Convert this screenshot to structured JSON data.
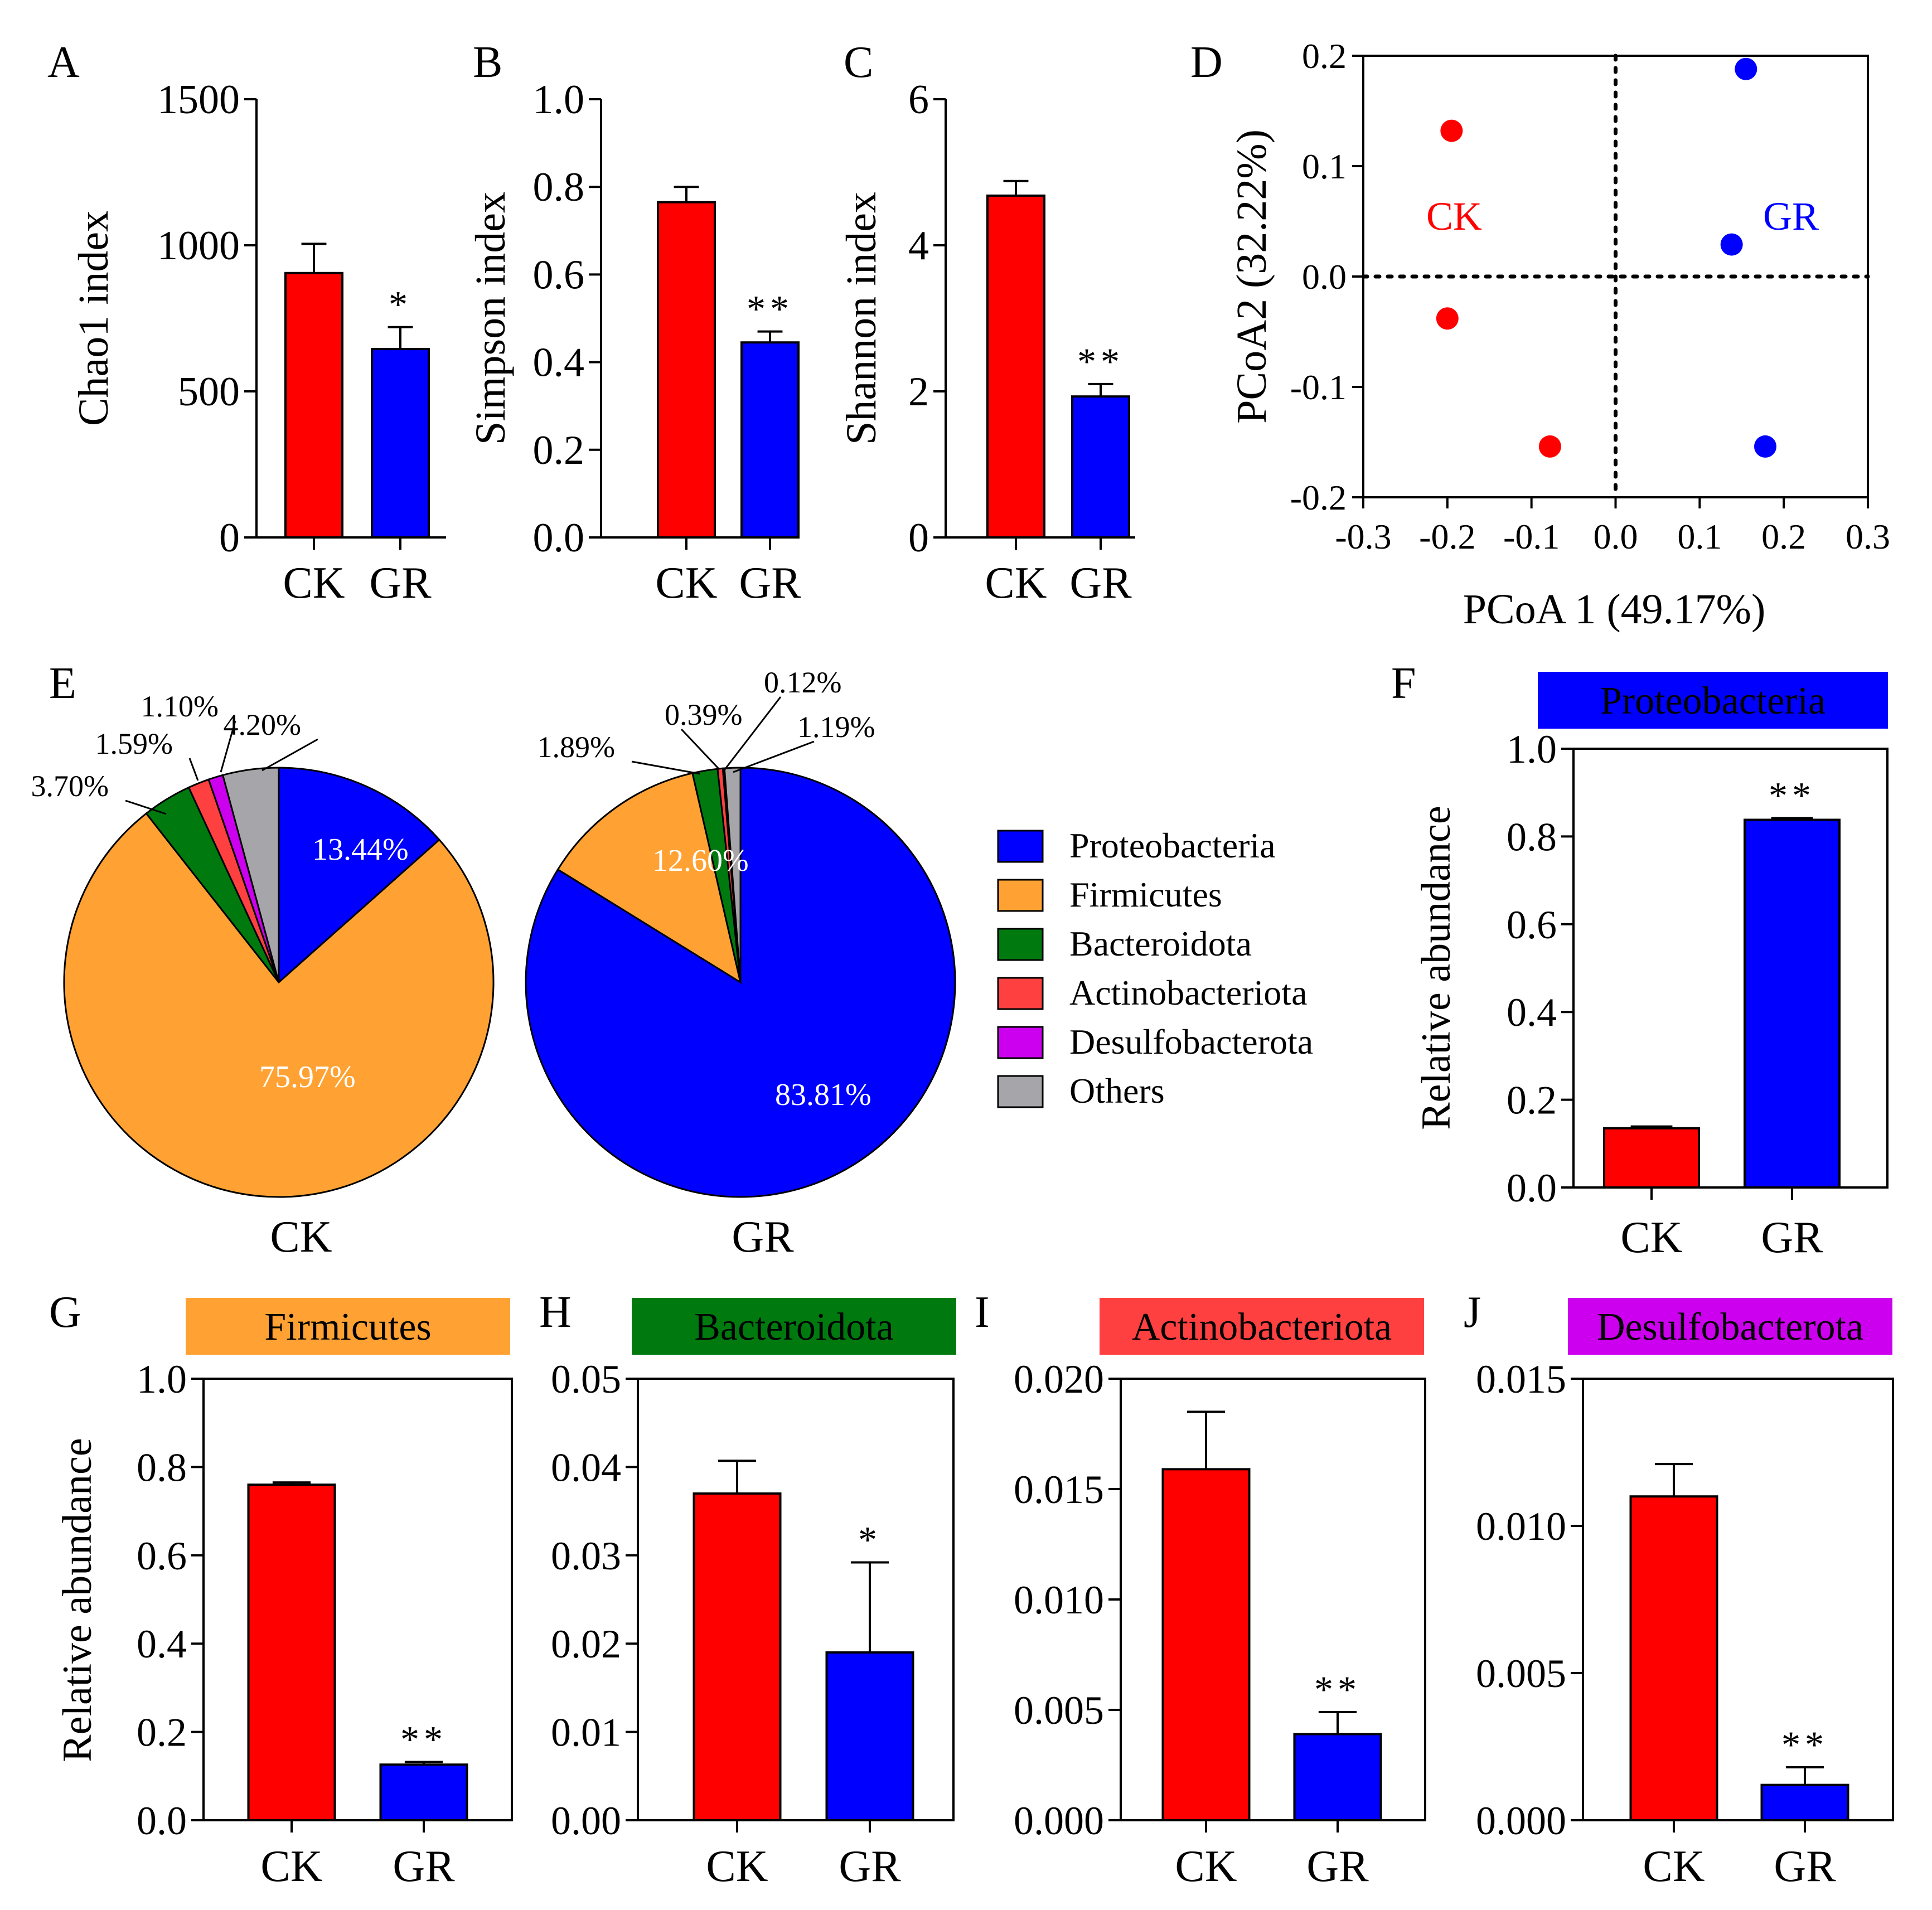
{
  "colors": {
    "ck": "#ff0000",
    "gr": "#0000ff",
    "proteobacteria": "#0000ff",
    "firmicutes": "#ffa233",
    "bacteroidota": "#007a0f",
    "actinobacteriota": "#ff4040",
    "desulfobacterota": "#cc00ee",
    "others": "#a6a6aa"
  },
  "chart_data": [
    {
      "panel": "A",
      "type": "bar",
      "categories": [
        "CK",
        "GR"
      ],
      "values": [
        905,
        645
      ],
      "errors": [
        100,
        75
      ],
      "significance": [
        "",
        "*"
      ],
      "ylabel": "Chao1 index",
      "ylim": [
        0,
        1500
      ],
      "yticks": [
        0,
        500,
        1000,
        1500
      ],
      "ytick_labels": [
        "0",
        "500",
        "1000",
        "1500"
      ]
    },
    {
      "panel": "B",
      "type": "bar",
      "categories": [
        "CK",
        "GR"
      ],
      "values": [
        0.765,
        0.445
      ],
      "errors": [
        0.035,
        0.025
      ],
      "significance": [
        "",
        "**"
      ],
      "ylabel": "Simpson index",
      "ylim": [
        0,
        1.0
      ],
      "yticks": [
        0,
        0.2,
        0.4,
        0.6,
        0.8,
        1.0
      ],
      "ytick_labels": [
        "0.0",
        "0.2",
        "0.4",
        "0.6",
        "0.8",
        "1.0"
      ]
    },
    {
      "panel": "C",
      "type": "bar",
      "categories": [
        "CK",
        "GR"
      ],
      "values": [
        4.68,
        1.93
      ],
      "errors": [
        0.2,
        0.17
      ],
      "significance": [
        "",
        "**"
      ],
      "ylabel": "Shannon index",
      "ylim": [
        0,
        6
      ],
      "yticks": [
        0,
        2,
        4,
        6
      ],
      "ytick_labels": [
        "0",
        "2",
        "4",
        "6"
      ]
    },
    {
      "panel": "D",
      "type": "scatter",
      "xlabel": "PCoA 1 (49.17%)",
      "ylabel": "PCoA2 (32.22%)",
      "xlim": [
        -0.3,
        0.3
      ],
      "ylim": [
        -0.2,
        0.2
      ],
      "xticks": [
        -0.3,
        -0.2,
        -0.1,
        0.0,
        0.1,
        0.2,
        0.3
      ],
      "xtick_labels": [
        "-0.3",
        "-0.2",
        "-0.1",
        "0.0",
        "0.1",
        "0.2",
        "0.3"
      ],
      "yticks": [
        -0.2,
        -0.1,
        0.0,
        0.1,
        0.2
      ],
      "ytick_labels": [
        "-0.2",
        "-0.1",
        "0.0",
        "0.1",
        "0.2"
      ],
      "series": [
        {
          "name": "CK",
          "points": [
            [
              -0.195,
              0.132
            ],
            [
              -0.2,
              -0.038
            ],
            [
              -0.078,
              -0.154
            ]
          ]
        },
        {
          "name": "GR",
          "points": [
            [
              0.155,
              0.188
            ],
            [
              0.138,
              0.029
            ],
            [
              0.178,
              -0.154
            ]
          ]
        }
      ]
    },
    {
      "panel": "E",
      "type": "pie",
      "legend": [
        "Proteobacteria",
        "Firmicutes",
        "Bacteroidota",
        "Actinobacteriota",
        "Desulfobacterota",
        "Others"
      ],
      "pies": [
        {
          "name": "CK",
          "values": [
            13.44,
            75.97,
            3.7,
            1.59,
            1.1,
            4.2
          ],
          "labels": [
            "13.44%",
            "75.97%",
            "3.70%",
            "1.59%",
            "1.10%",
            "4.20%"
          ]
        },
        {
          "name": "GR",
          "values": [
            83.81,
            12.6,
            1.89,
            0.39,
            0.12,
            1.19
          ],
          "labels": [
            "83.81%",
            "12.60%",
            "1.89%",
            "0.39%",
            "0.12%",
            "1.19%"
          ]
        }
      ]
    },
    {
      "panel": "F",
      "type": "bar",
      "title": "Proteobacteria",
      "categories": [
        "CK",
        "GR"
      ],
      "values": [
        0.135,
        0.838
      ],
      "errors": [
        0.004,
        0.004
      ],
      "significance": [
        "",
        "**"
      ],
      "ylabel": "Relative abundance",
      "ylim": [
        0,
        1.0
      ],
      "yticks": [
        0,
        0.2,
        0.4,
        0.6,
        0.8,
        1.0
      ],
      "ytick_labels": [
        "0.0",
        "0.2",
        "0.4",
        "0.6",
        "0.8",
        "1.0"
      ]
    },
    {
      "panel": "G",
      "type": "bar",
      "title": "Firmicutes",
      "categories": [
        "CK",
        "GR"
      ],
      "values": [
        0.76,
        0.126
      ],
      "errors": [
        0.005,
        0.006
      ],
      "significance": [
        "",
        "**"
      ],
      "ylabel": "Relative abundance",
      "ylim": [
        0,
        1.0
      ],
      "yticks": [
        0,
        0.2,
        0.4,
        0.6,
        0.8,
        1.0
      ],
      "ytick_labels": [
        "0.0",
        "0.2",
        "0.4",
        "0.6",
        "0.8",
        "1.0"
      ]
    },
    {
      "panel": "H",
      "type": "bar",
      "title": "Bacteroidota",
      "categories": [
        "CK",
        "GR"
      ],
      "values": [
        0.037,
        0.019
      ],
      "errors": [
        0.0037,
        0.0102
      ],
      "significance": [
        "",
        "*"
      ],
      "ylabel": "",
      "ylim": [
        0,
        0.05
      ],
      "yticks": [
        0,
        0.01,
        0.02,
        0.03,
        0.04,
        0.05
      ],
      "ytick_labels": [
        "0.00",
        "0.01",
        "0.02",
        "0.03",
        "0.04",
        "0.05"
      ]
    },
    {
      "panel": "I",
      "type": "bar",
      "title": "Actinobacteriota",
      "categories": [
        "CK",
        "GR"
      ],
      "values": [
        0.0159,
        0.0039
      ],
      "errors": [
        0.0026,
        0.001
      ],
      "significance": [
        "",
        "**"
      ],
      "ylabel": "",
      "ylim": [
        0,
        0.02
      ],
      "yticks": [
        0,
        0.005,
        0.01,
        0.015,
        0.02
      ],
      "ytick_labels": [
        "0.000",
        "0.005",
        "0.010",
        "0.015",
        "0.020"
      ]
    },
    {
      "panel": "J",
      "type": "bar",
      "title": "Desulfobacterota",
      "categories": [
        "CK",
        "GR"
      ],
      "values": [
        0.011,
        0.0012
      ],
      "errors": [
        0.0011,
        0.0006
      ],
      "significance": [
        "",
        "**"
      ],
      "ylabel": "",
      "ylim": [
        0,
        0.015
      ],
      "yticks": [
        0,
        0.005,
        0.01,
        0.015
      ],
      "ytick_labels": [
        "0.000",
        "0.005",
        "0.010",
        "0.015"
      ]
    }
  ]
}
